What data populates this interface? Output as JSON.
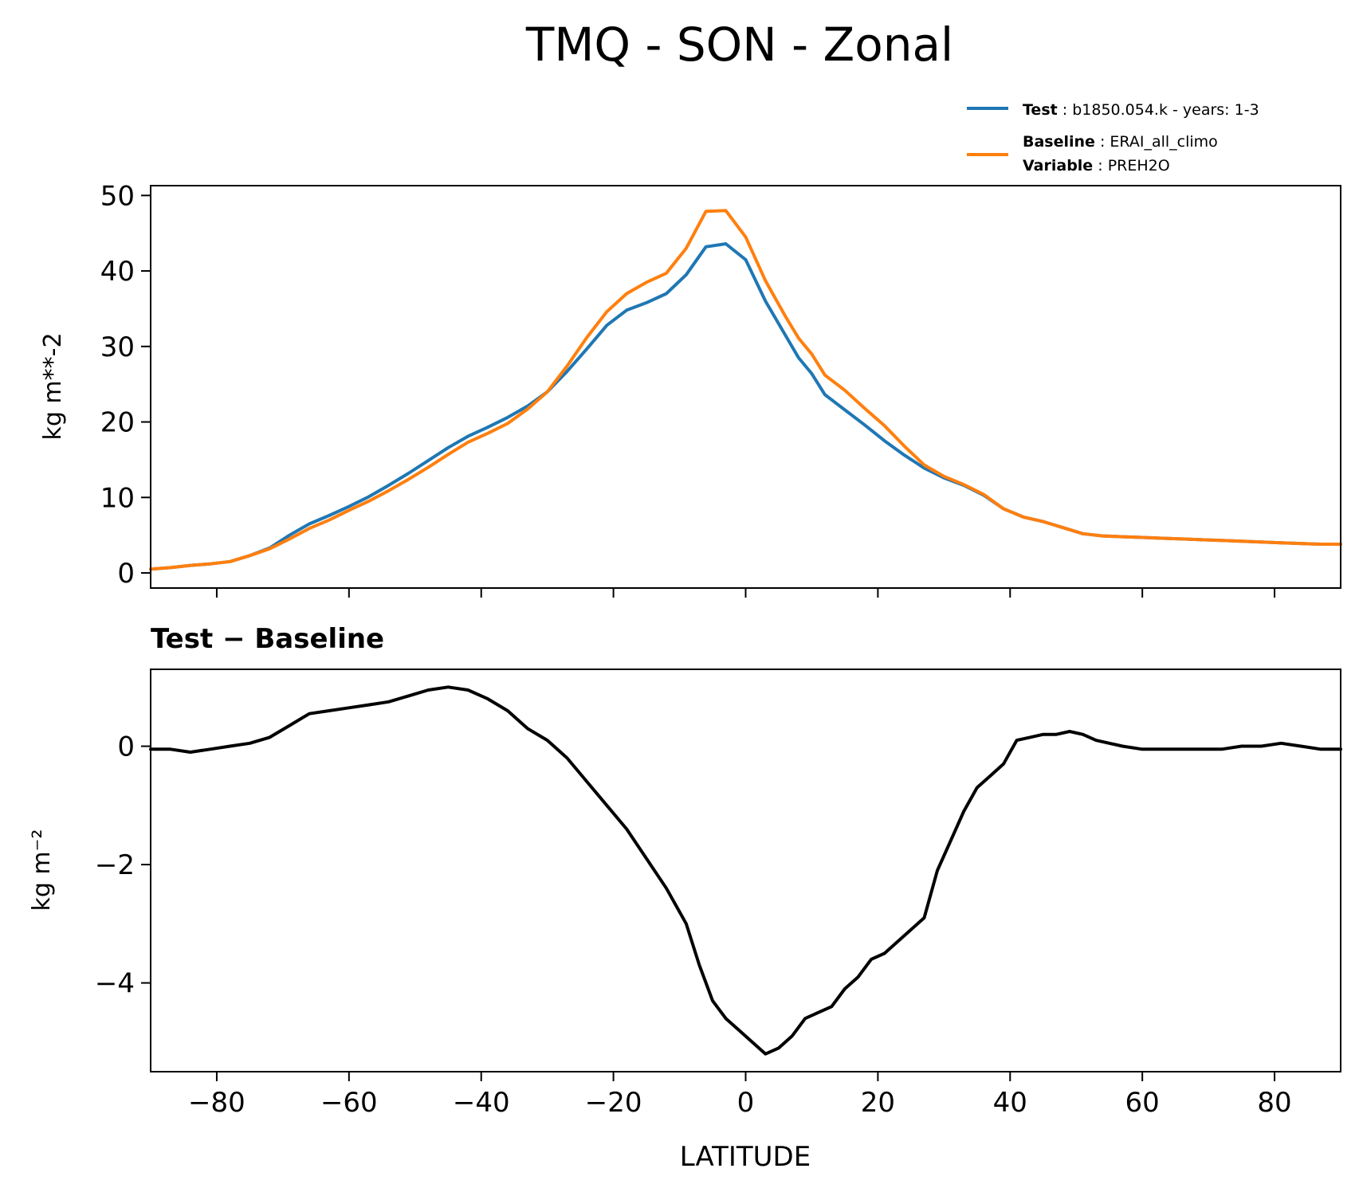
{
  "title": "TMQ - SON - Zonal",
  "legend": {
    "test": {
      "key": "Test",
      "text": "b1850.054.k - years: 1-3",
      "color": "#1f77b4"
    },
    "baseline": {
      "key": "Baseline",
      "text": "ERAI_all_climo",
      "color": "#ff7f0e"
    },
    "variable": {
      "key": "Variable",
      "text": "PREH2O"
    }
  },
  "chart_data": [
    {
      "type": "line",
      "title": "",
      "xlabel": "",
      "ylabel": "kg m**-2",
      "xlim": [
        -90,
        90
      ],
      "ylim": [
        -2,
        51.3
      ],
      "xticks": [
        -80,
        -60,
        -40,
        -20,
        0,
        20,
        40,
        60,
        80
      ],
      "yticks": [
        0,
        10,
        20,
        30,
        40,
        50
      ],
      "x": [
        -90,
        -87,
        -84,
        -81,
        -78,
        -75,
        -72,
        -69,
        -66,
        -63,
        -60,
        -57,
        -54,
        -51,
        -48,
        -45,
        -42,
        -39,
        -36,
        -33,
        -30,
        -27,
        -24,
        -21,
        -18,
        -15,
        -12,
        -9,
        -6,
        -3,
        0,
        3,
        6,
        8,
        10,
        12,
        15,
        18,
        21,
        24,
        27,
        30,
        33,
        36,
        39,
        42,
        45,
        48,
        51,
        54,
        57,
        60,
        63,
        66,
        69,
        72,
        75,
        78,
        81,
        84,
        87,
        90
      ],
      "series": [
        {
          "name": "Test",
          "color": "#1f77b4",
          "values": [
            0.5,
            0.7,
            1.0,
            1.2,
            1.5,
            2.3,
            3.3,
            5.0,
            6.5,
            7.6,
            8.8,
            10.1,
            11.6,
            13.2,
            14.9,
            16.6,
            18.1,
            19.3,
            20.6,
            22.1,
            24.0,
            26.7,
            29.7,
            32.8,
            34.8,
            35.8,
            37.0,
            39.5,
            43.2,
            43.6,
            41.5,
            36.0,
            31.5,
            28.5,
            26.4,
            23.6,
            21.6,
            19.6,
            17.5,
            15.6,
            13.9,
            12.6,
            11.6,
            10.3,
            8.5,
            7.4,
            6.8,
            6.0,
            5.2,
            4.9,
            4.8,
            4.7,
            4.6,
            4.5,
            4.4,
            4.3,
            4.2,
            4.1,
            4.0,
            3.9,
            3.8,
            3.8
          ]
        },
        {
          "name": "Baseline",
          "color": "#ff7f0e",
          "values": [
            0.5,
            0.7,
            1.0,
            1.2,
            1.5,
            2.3,
            3.2,
            4.5,
            5.9,
            7.0,
            8.3,
            9.5,
            10.9,
            12.4,
            14.0,
            15.7,
            17.3,
            18.5,
            19.8,
            21.7,
            24.0,
            27.4,
            31.2,
            34.6,
            37.0,
            38.5,
            39.7,
            43.0,
            47.9,
            48.0,
            44.5,
            38.7,
            34.0,
            31.1,
            29.0,
            26.2,
            24.2,
            21.8,
            19.5,
            16.8,
            14.3,
            12.8,
            11.7,
            10.4,
            8.5,
            7.4,
            6.8,
            6.0,
            5.2,
            4.9,
            4.8,
            4.7,
            4.6,
            4.5,
            4.4,
            4.3,
            4.2,
            4.1,
            4.0,
            3.9,
            3.8,
            3.8
          ]
        }
      ]
    },
    {
      "type": "line",
      "title": "Test − Baseline",
      "xlabel": "LATITUDE",
      "ylabel": "kg m⁻²",
      "xlim": [
        -90,
        90
      ],
      "ylim": [
        -5.5,
        1.3
      ],
      "xticks": [
        -80,
        -60,
        -40,
        -20,
        0,
        20,
        40,
        60,
        80
      ],
      "yticks": [
        -4,
        -2,
        0
      ],
      "x": [
        -90,
        -87,
        -84,
        -81,
        -78,
        -75,
        -72,
        -69,
        -66,
        -63,
        -60,
        -57,
        -54,
        -51,
        -48,
        -45,
        -42,
        -39,
        -36,
        -33,
        -30,
        -27,
        -24,
        -21,
        -18,
        -15,
        -12,
        -9,
        -7,
        -5,
        -3,
        -1,
        1,
        3,
        5,
        7,
        9,
        11,
        13,
        15,
        17,
        19,
        21,
        23,
        25,
        27,
        29,
        31,
        33,
        35,
        37,
        39,
        41,
        43,
        45,
        47,
        49,
        51,
        53,
        55,
        57,
        60,
        63,
        66,
        69,
        72,
        75,
        78,
        81,
        84,
        87,
        90
      ],
      "series": [
        {
          "name": "",
          "color": "#000000",
          "values": [
            -0.05,
            -0.05,
            -0.1,
            -0.05,
            0.0,
            0.05,
            0.15,
            0.35,
            0.55,
            0.6,
            0.65,
            0.7,
            0.75,
            0.85,
            0.95,
            1.0,
            0.95,
            0.8,
            0.6,
            0.3,
            0.1,
            -0.2,
            -0.6,
            -1.0,
            -1.4,
            -1.9,
            -2.4,
            -3.0,
            -3.7,
            -4.3,
            -4.6,
            -4.8,
            -5.0,
            -5.2,
            -5.1,
            -4.9,
            -4.6,
            -4.5,
            -4.4,
            -4.1,
            -3.9,
            -3.6,
            -3.5,
            -3.3,
            -3.1,
            -2.9,
            -2.1,
            -1.6,
            -1.1,
            -0.7,
            -0.5,
            -0.3,
            0.1,
            0.15,
            0.2,
            0.2,
            0.25,
            0.2,
            0.1,
            0.05,
            0.0,
            -0.05,
            -0.05,
            -0.05,
            -0.05,
            -0.05,
            0.0,
            0.0,
            0.05,
            0.0,
            -0.05,
            -0.05
          ]
        }
      ]
    }
  ]
}
